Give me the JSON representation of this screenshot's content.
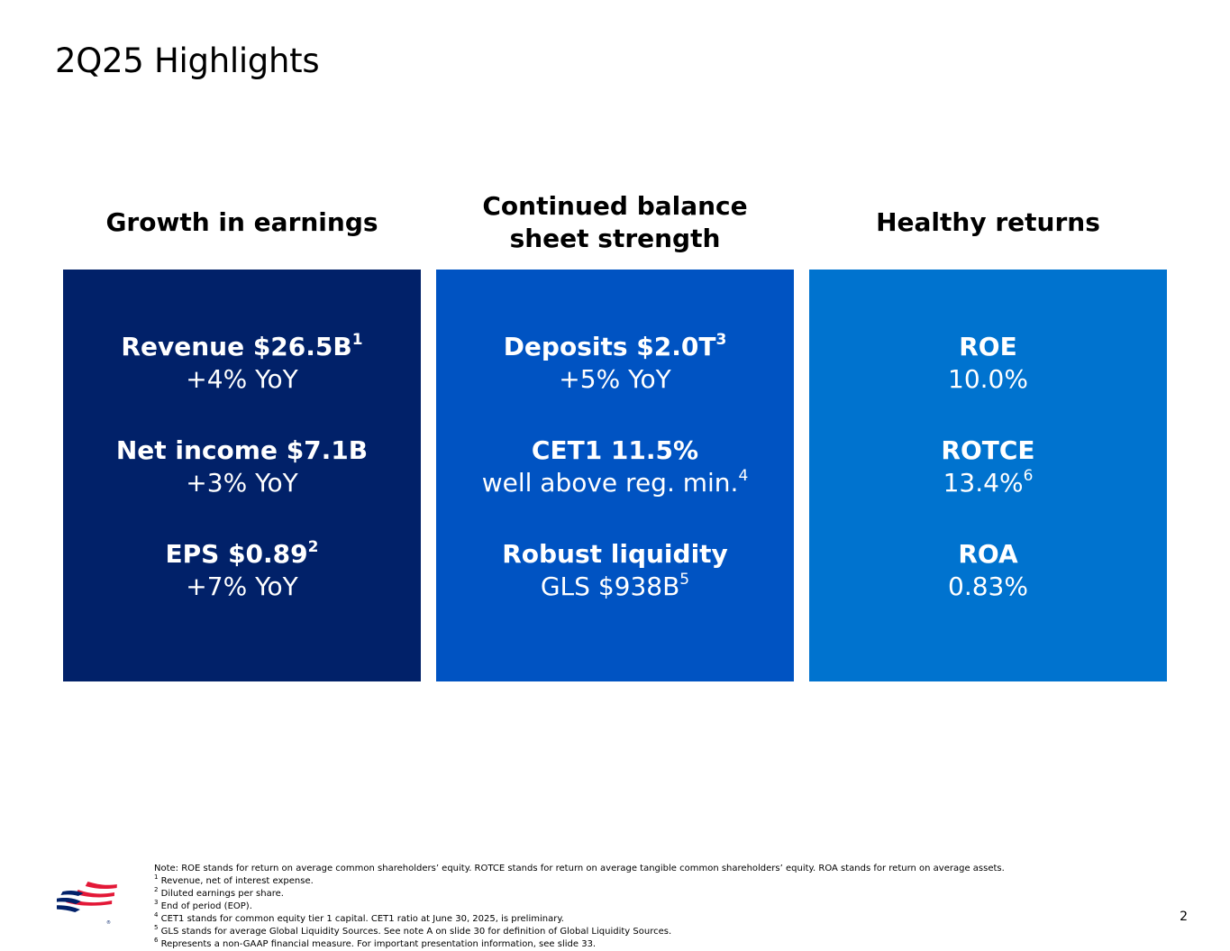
{
  "slide": {
    "title": "2Q25 Highlights",
    "page_number": "2"
  },
  "columns": [
    {
      "heading_lines": [
        "Growth in earnings"
      ],
      "panel_color": "#012169",
      "metrics": [
        {
          "title": "Revenue $26.5B",
          "title_sup": "1",
          "sub": "+4% YoY",
          "sub_sup": ""
        },
        {
          "title": "Net income $7.1B",
          "title_sup": "",
          "sub": "+3% YoY",
          "sub_sup": ""
        },
        {
          "title": "EPS $0.89",
          "title_sup": "2",
          "sub": "+7% YoY",
          "sub_sup": ""
        }
      ]
    },
    {
      "heading_lines": [
        "Continued balance",
        "sheet strength"
      ],
      "panel_color": "#0053c2",
      "metrics": [
        {
          "title": "Deposits $2.0T",
          "title_sup": "3",
          "sub": "+5% YoY",
          "sub_sup": ""
        },
        {
          "title": "CET1 11.5%",
          "title_sup": "",
          "sub": "well above reg. min.",
          "sub_sup": "4"
        },
        {
          "title": "Robust liquidity",
          "title_sup": "",
          "sub": "GLS $938B",
          "sub_sup": "5"
        }
      ]
    },
    {
      "heading_lines": [
        "Healthy returns"
      ],
      "panel_color": "#0073cf",
      "metrics": [
        {
          "title": "ROE",
          "title_sup": "",
          "sub": "10.0%",
          "sub_sup": ""
        },
        {
          "title": "ROTCE",
          "title_sup": "",
          "sub": "13.4%",
          "sub_sup": "6"
        },
        {
          "title": "ROA",
          "title_sup": "",
          "sub": "0.83%",
          "sub_sup": ""
        }
      ]
    }
  ],
  "footnotes": [
    {
      "marker": "",
      "text": "Note: ROE stands for return on average common shareholders’ equity. ROTCE stands for return on average tangible common shareholders’ equity. ROA stands for return on average assets."
    },
    {
      "marker": "1",
      "text": " Revenue, net of interest expense."
    },
    {
      "marker": "2",
      "text": " Diluted earnings per share."
    },
    {
      "marker": "3",
      "text": " End of period (EOP)."
    },
    {
      "marker": "4",
      "text": " CET1 stands for common equity tier 1 capital. CET1 ratio at June 30, 2025, is preliminary."
    },
    {
      "marker": "5",
      "text": " GLS stands for average Global Liquidity Sources. See note A on slide 30 for definition of Global Liquidity Sources."
    },
    {
      "marker": "6",
      "text": " Represents a non-GAAP financial measure. For important presentation information, see slide 33."
    }
  ],
  "logo": {
    "icon": "bank-flag-logo-icon",
    "colors": {
      "red": "#e31837",
      "blue": "#012169"
    }
  }
}
